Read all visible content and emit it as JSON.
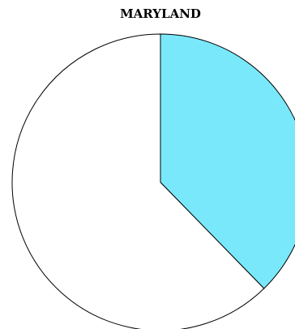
{
  "chart_data": {
    "type": "pie",
    "title": "MARYLAND",
    "categories": [
      null,
      null
    ],
    "series": [
      {
        "values": [
          37.7,
          62.3
        ],
        "colors": [
          "#7ae8fb",
          "#ffffff"
        ]
      }
    ]
  }
}
